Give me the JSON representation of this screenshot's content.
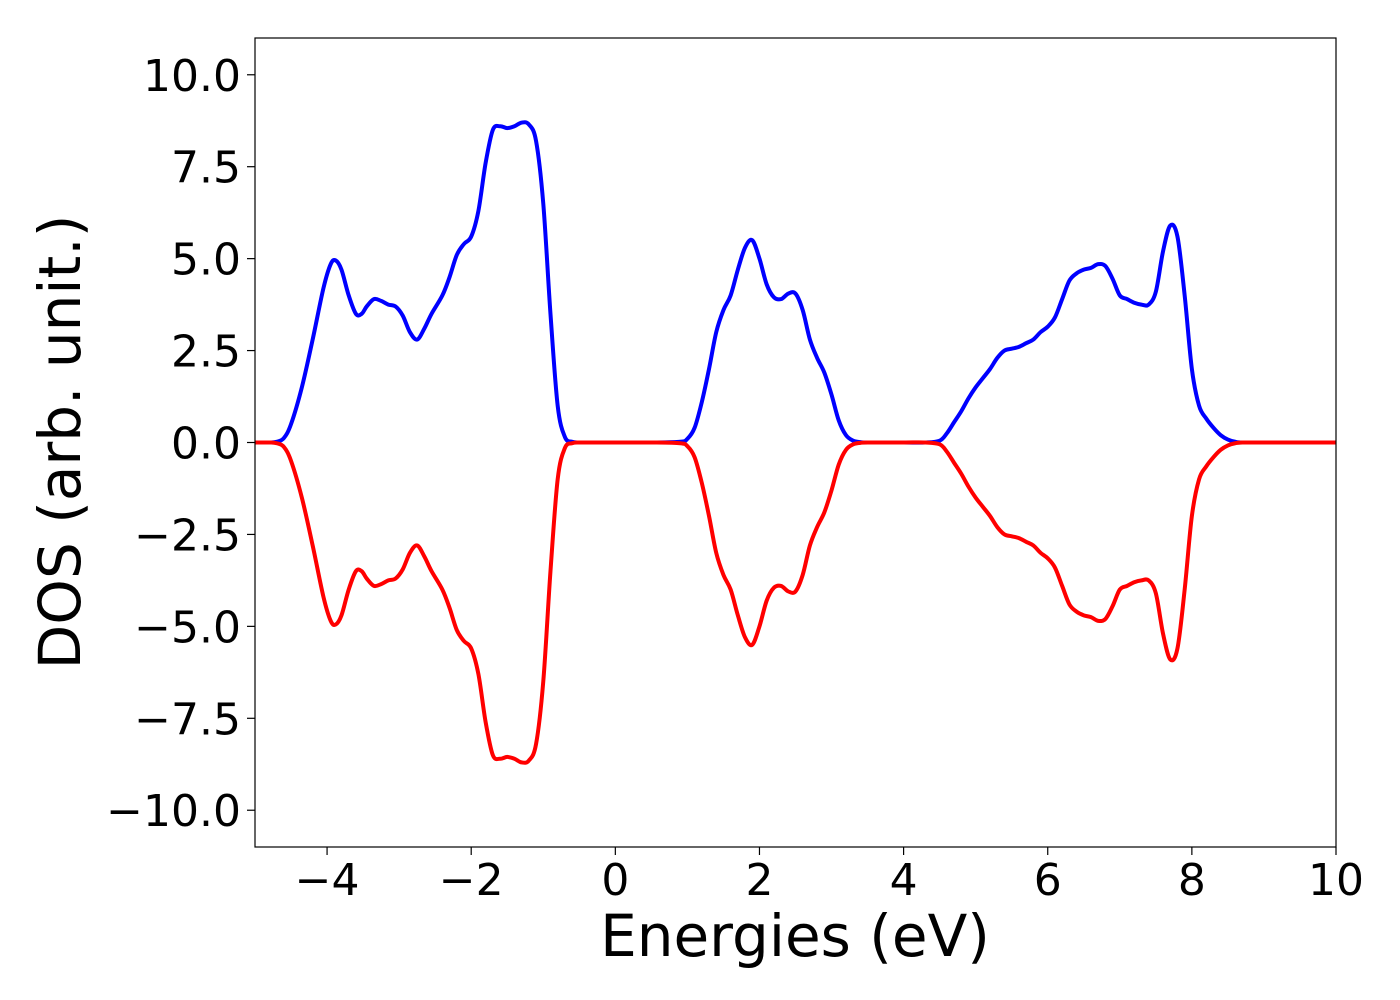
{
  "chart_data": {
    "type": "line",
    "title": "",
    "xlabel": "Energies (eV)",
    "ylabel": "DOS (arb. unit.)",
    "xlim": [
      -5,
      10
    ],
    "ylim": [
      -11,
      11
    ],
    "xticks": [
      -4,
      -2,
      0,
      2,
      4,
      6,
      8,
      10
    ],
    "xtick_labels": [
      "−4",
      "−2",
      "0",
      "2",
      "4",
      "6",
      "8",
      "10"
    ],
    "yticks": [
      -10,
      -7.5,
      -5,
      -2.5,
      0,
      2.5,
      5,
      7.5,
      10
    ],
    "ytick_labels": [
      "−10.0",
      "−7.5",
      "−5.0",
      "−2.5",
      "0.0",
      "2.5",
      "5.0",
      "7.5",
      "10.0"
    ],
    "grid": false,
    "legend": "none",
    "series": [
      {
        "color": "#0000ff",
        "x": [
          -5,
          -4.8,
          -4.7,
          -4.6,
          -4.5,
          -4.35,
          -4.2,
          -4.05,
          -3.95,
          -3.88,
          -3.8,
          -3.7,
          -3.6,
          -3.52,
          -3.45,
          -3.35,
          -3.25,
          -3.15,
          -3.05,
          -2.95,
          -2.85,
          -2.75,
          -2.65,
          -2.55,
          -2.4,
          -2.3,
          -2.2,
          -2.1,
          -2.0,
          -1.9,
          -1.8,
          -1.7,
          -1.6,
          -1.5,
          -1.4,
          -1.3,
          -1.2,
          -1.1,
          -1.0,
          -0.9,
          -0.8,
          -0.7,
          -0.6,
          -0.5,
          -0.3,
          0,
          0.5,
          0.9,
          1.0,
          1.1,
          1.2,
          1.3,
          1.4,
          1.5,
          1.6,
          1.7,
          1.8,
          1.9,
          2.0,
          2.1,
          2.2,
          2.3,
          2.4,
          2.5,
          2.6,
          2.7,
          2.8,
          2.9,
          3.0,
          3.1,
          3.2,
          3.3,
          3.4,
          3.5,
          4.0,
          4.3,
          4.5,
          4.6,
          4.7,
          4.8,
          4.9,
          5.0,
          5.1,
          5.2,
          5.3,
          5.4,
          5.5,
          5.6,
          5.7,
          5.8,
          5.9,
          6.0,
          6.1,
          6.2,
          6.3,
          6.4,
          6.5,
          6.6,
          6.7,
          6.8,
          6.9,
          7.0,
          7.1,
          7.2,
          7.3,
          7.4,
          7.5,
          7.6,
          7.7,
          7.8,
          7.9,
          8.0,
          8.1,
          8.2,
          8.3,
          8.4,
          8.5,
          8.6,
          8.7,
          9.0,
          10.0
        ],
        "y": [
          0,
          0,
          0.02,
          0.12,
          0.5,
          1.5,
          2.8,
          4.2,
          4.85,
          4.95,
          4.7,
          4.0,
          3.5,
          3.5,
          3.7,
          3.9,
          3.85,
          3.75,
          3.7,
          3.45,
          3.0,
          2.8,
          3.1,
          3.5,
          4.0,
          4.5,
          5.1,
          5.4,
          5.6,
          6.3,
          7.6,
          8.5,
          8.6,
          8.55,
          8.6,
          8.7,
          8.65,
          8.2,
          6.5,
          3.5,
          1.0,
          0.15,
          0.02,
          0,
          0,
          0,
          0,
          0.02,
          0.1,
          0.4,
          1.1,
          2.0,
          3.0,
          3.6,
          4.0,
          4.7,
          5.3,
          5.5,
          5.0,
          4.3,
          3.95,
          3.9,
          4.05,
          4.05,
          3.6,
          2.8,
          2.3,
          1.9,
          1.3,
          0.6,
          0.2,
          0.05,
          0.01,
          0,
          0,
          0,
          0.05,
          0.25,
          0.55,
          0.85,
          1.2,
          1.5,
          1.75,
          2.0,
          2.3,
          2.5,
          2.55,
          2.6,
          2.7,
          2.8,
          3.0,
          3.15,
          3.4,
          3.9,
          4.4,
          4.6,
          4.7,
          4.75,
          4.85,
          4.8,
          4.45,
          4.0,
          3.9,
          3.8,
          3.75,
          3.75,
          4.1,
          5.2,
          5.9,
          5.6,
          4.0,
          2.0,
          1.0,
          0.65,
          0.4,
          0.2,
          0.08,
          0.02,
          0,
          0,
          0
        ]
      },
      {
        "color": "#ff0000",
        "x": [
          -5,
          -4.8,
          -4.7,
          -4.6,
          -4.5,
          -4.35,
          -4.2,
          -4.05,
          -3.95,
          -3.88,
          -3.8,
          -3.7,
          -3.6,
          -3.52,
          -3.45,
          -3.35,
          -3.25,
          -3.15,
          -3.05,
          -2.95,
          -2.85,
          -2.75,
          -2.65,
          -2.55,
          -2.4,
          -2.3,
          -2.2,
          -2.1,
          -2.0,
          -1.9,
          -1.8,
          -1.7,
          -1.6,
          -1.5,
          -1.4,
          -1.3,
          -1.2,
          -1.1,
          -1.0,
          -0.9,
          -0.8,
          -0.7,
          -0.6,
          -0.5,
          -0.3,
          0,
          0.5,
          0.9,
          1.0,
          1.1,
          1.2,
          1.3,
          1.4,
          1.5,
          1.6,
          1.7,
          1.8,
          1.9,
          2.0,
          2.1,
          2.2,
          2.3,
          2.4,
          2.5,
          2.6,
          2.7,
          2.8,
          2.9,
          3.0,
          3.1,
          3.2,
          3.3,
          3.4,
          3.5,
          4.0,
          4.3,
          4.5,
          4.6,
          4.7,
          4.8,
          4.9,
          5.0,
          5.1,
          5.2,
          5.3,
          5.4,
          5.5,
          5.6,
          5.7,
          5.8,
          5.9,
          6.0,
          6.1,
          6.2,
          6.3,
          6.4,
          6.5,
          6.6,
          6.7,
          6.8,
          6.9,
          7.0,
          7.1,
          7.2,
          7.3,
          7.4,
          7.5,
          7.6,
          7.7,
          7.8,
          7.9,
          8.0,
          8.1,
          8.2,
          8.3,
          8.4,
          8.5,
          8.6,
          8.7,
          9.0,
          10.0
        ],
        "y": [
          0,
          0,
          -0.02,
          -0.12,
          -0.5,
          -1.5,
          -2.8,
          -4.2,
          -4.85,
          -4.95,
          -4.7,
          -4.0,
          -3.5,
          -3.5,
          -3.7,
          -3.9,
          -3.85,
          -3.75,
          -3.7,
          -3.45,
          -3.0,
          -2.8,
          -3.1,
          -3.5,
          -4.0,
          -4.5,
          -5.1,
          -5.4,
          -5.6,
          -6.3,
          -7.6,
          -8.5,
          -8.6,
          -8.55,
          -8.6,
          -8.7,
          -8.65,
          -8.2,
          -6.5,
          -3.5,
          -1.0,
          -0.15,
          -0.02,
          0,
          0,
          0,
          0,
          -0.02,
          -0.1,
          -0.4,
          -1.1,
          -2.0,
          -3.0,
          -3.6,
          -4.0,
          -4.7,
          -5.3,
          -5.5,
          -5.0,
          -4.3,
          -3.95,
          -3.9,
          -4.05,
          -4.05,
          -3.6,
          -2.8,
          -2.3,
          -1.9,
          -1.3,
          -0.6,
          -0.2,
          -0.05,
          -0.01,
          0,
          0,
          0,
          -0.05,
          -0.25,
          -0.55,
          -0.85,
          -1.2,
          -1.5,
          -1.75,
          -2.0,
          -2.3,
          -2.5,
          -2.55,
          -2.6,
          -2.7,
          -2.8,
          -3.0,
          -3.15,
          -3.4,
          -3.9,
          -4.4,
          -4.6,
          -4.7,
          -4.75,
          -4.85,
          -4.8,
          -4.45,
          -4.0,
          -3.9,
          -3.8,
          -3.75,
          -3.75,
          -4.1,
          -5.2,
          -5.9,
          -5.6,
          -4.0,
          -2.0,
          -1.0,
          -0.65,
          -0.4,
          -0.2,
          -0.08,
          -0.02,
          0,
          0,
          0
        ]
      }
    ]
  }
}
